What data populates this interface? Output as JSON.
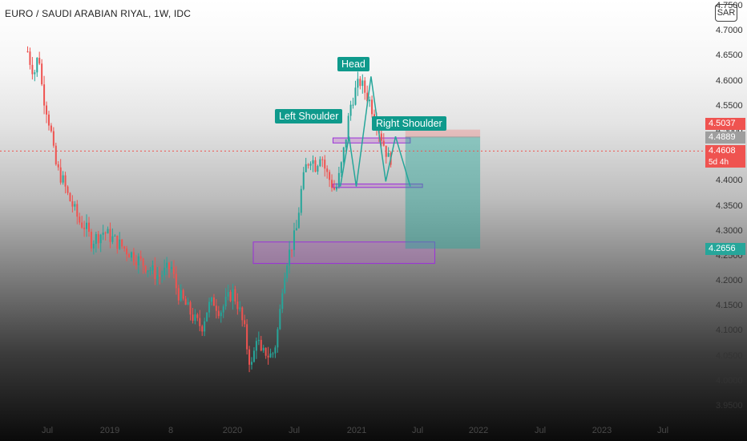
{
  "header": {
    "title": "EURO / SAUDI ARABIAN RIYAL, 1W, IDC",
    "currency_button": "SAR"
  },
  "price_tags": {
    "red_upper": "4.5037",
    "gray": "4.4889",
    "red_current": "4.4608",
    "countdown": "5d 4h",
    "green_target": "4.2656"
  },
  "pattern_labels": {
    "left_shoulder": "Left Shoulder",
    "head": "Head",
    "right_shoulder": "Right Shoulder"
  },
  "colors": {
    "up_candle": "#26a69a",
    "down_candle": "#ef5350",
    "zone_border": "#9b30d9",
    "zone_fill": "rgba(186,104,200,0.35)",
    "pattern_line": "#26a69a",
    "label_bg": "#0f9a8c",
    "stop_fill": "rgba(239,83,80,0.25)",
    "target_fill": "rgba(38,166,154,0.45)"
  },
  "chart_data": {
    "type": "candlestick",
    "title": "EURO / SAUDI ARABIAN RIYAL, 1W, IDC",
    "y_axis_ticks": [
      "4.7500",
      "4.7000",
      "4.6500",
      "4.6000",
      "4.5500",
      "4.5000",
      "4.4500",
      "4.4000",
      "4.3500",
      "4.3000",
      "4.2500",
      "4.2000",
      "4.1500",
      "4.1000",
      "4.0500",
      "4.0000",
      "3.9500"
    ],
    "x_axis_ticks": [
      "Jul",
      "2019",
      "8",
      "2020",
      "Jul",
      "2021",
      "Jul",
      "2022",
      "Jul",
      "2023",
      "Jul"
    ],
    "ylim": [
      3.95,
      4.75
    ],
    "price_path": [
      [
        2018.33,
        4.66
      ],
      [
        2018.36,
        4.63
      ],
      [
        2018.39,
        4.62
      ],
      [
        2018.42,
        4.66
      ],
      [
        2018.45,
        4.58
      ],
      [
        2018.48,
        4.55
      ],
      [
        2018.52,
        4.5
      ],
      [
        2018.55,
        4.44
      ],
      [
        2018.58,
        4.42
      ],
      [
        2018.62,
        4.4
      ],
      [
        2018.66,
        4.37
      ],
      [
        2018.7,
        4.35
      ],
      [
        2018.75,
        4.32
      ],
      [
        2018.8,
        4.31
      ],
      [
        2018.85,
        4.28
      ],
      [
        2018.9,
        4.29
      ],
      [
        2018.95,
        4.3
      ],
      [
        2019.0,
        4.29
      ],
      [
        2019.05,
        4.28
      ],
      [
        2019.1,
        4.27
      ],
      [
        2019.15,
        4.26
      ],
      [
        2019.2,
        4.25
      ],
      [
        2019.25,
        4.24
      ],
      [
        2019.3,
        4.23
      ],
      [
        2019.35,
        4.22
      ],
      [
        2019.4,
        4.21
      ],
      [
        2019.45,
        4.22
      ],
      [
        2019.5,
        4.23
      ],
      [
        2019.55,
        4.18
      ],
      [
        2019.6,
        4.16
      ],
      [
        2019.65,
        4.14
      ],
      [
        2019.7,
        4.12
      ],
      [
        2019.75,
        4.11
      ],
      [
        2019.8,
        4.15
      ],
      [
        2019.85,
        4.16
      ],
      [
        2019.9,
        4.14
      ],
      [
        2019.95,
        4.16
      ],
      [
        2020.0,
        4.18
      ],
      [
        2020.05,
        4.15
      ],
      [
        2020.1,
        4.1
      ],
      [
        2020.13,
        4.05
      ],
      [
        2020.16,
        4.03
      ],
      [
        2020.2,
        4.1
      ],
      [
        2020.23,
        4.05
      ],
      [
        2020.27,
        4.06
      ],
      [
        2020.3,
        4.05
      ],
      [
        2020.34,
        4.06
      ],
      [
        2020.38,
        4.12
      ],
      [
        2020.41,
        4.2
      ],
      [
        2020.44,
        4.24
      ],
      [
        2020.48,
        4.27
      ],
      [
        2020.52,
        4.3
      ],
      [
        2020.56,
        4.38
      ],
      [
        2020.6,
        4.43
      ],
      [
        2020.64,
        4.45
      ],
      [
        2020.68,
        4.43
      ],
      [
        2020.72,
        4.46
      ],
      [
        2020.76,
        4.42
      ],
      [
        2020.8,
        4.4
      ],
      [
        2020.84,
        4.38
      ],
      [
        2020.88,
        4.42
      ],
      [
        2020.92,
        4.48
      ],
      [
        2020.96,
        4.55
      ],
      [
        2021.0,
        4.58
      ],
      [
        2021.04,
        4.6
      ],
      [
        2021.08,
        4.58
      ],
      [
        2021.12,
        4.56
      ],
      [
        2021.16,
        4.53
      ],
      [
        2021.2,
        4.5
      ],
      [
        2021.24,
        4.47
      ],
      [
        2021.28,
        4.44
      ],
      [
        2021.31,
        4.46
      ]
    ],
    "zones": [
      {
        "from_x": 2020.82,
        "to_x": 2021.45,
        "y_low": 4.477,
        "y_high": 4.487
      },
      {
        "from_x": 2020.82,
        "to_x": 2021.55,
        "y_low": 4.388,
        "y_high": 4.395
      },
      {
        "from_x": 2020.17,
        "to_x": 2021.65,
        "y_low": 4.236,
        "y_high": 4.279
      }
    ],
    "pattern_points": [
      [
        2020.88,
        4.39
      ],
      [
        2020.95,
        4.49
      ],
      [
        2021.01,
        4.39
      ],
      [
        2021.13,
        4.61
      ],
      [
        2021.25,
        4.4
      ],
      [
        2021.33,
        4.49
      ],
      [
        2021.45,
        4.39
      ]
    ],
    "short_position": {
      "from_x": 2021.41,
      "to_x": 2022.02,
      "stop": 4.5037,
      "entry": 4.4889,
      "target": 4.2656
    },
    "current_price": 4.4608,
    "annotations": [
      "Left Shoulder",
      "Head",
      "Right Shoulder"
    ]
  }
}
